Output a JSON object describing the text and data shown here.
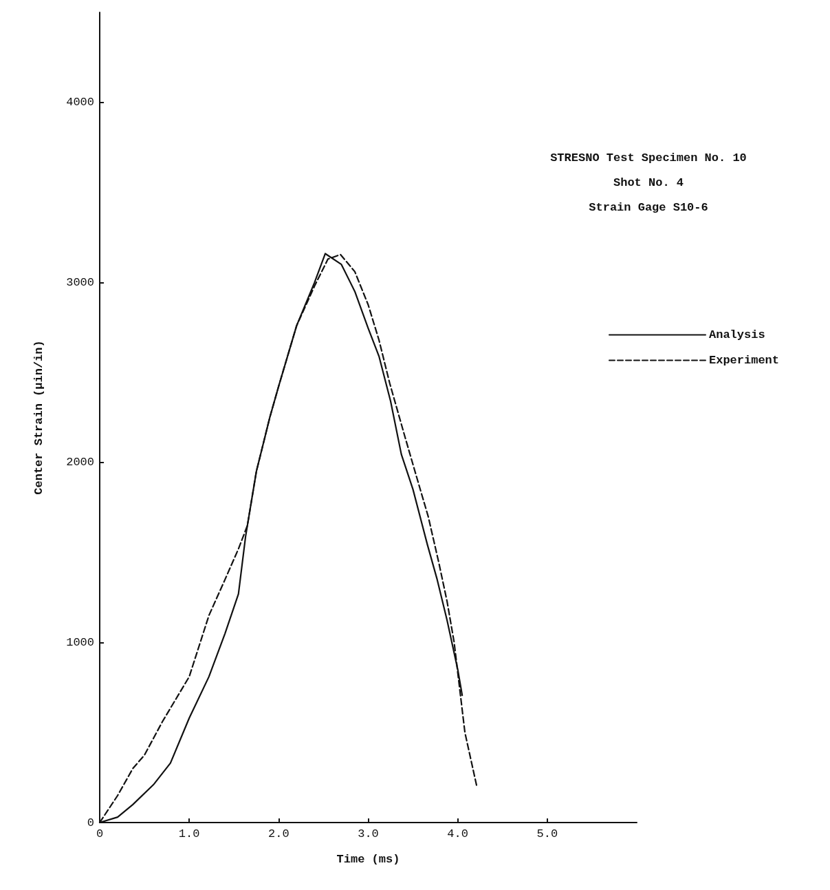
{
  "chart_data": {
    "type": "line",
    "xlabel": "Time (ms)",
    "ylabel": "Center Strain (μin/in)",
    "annotations": [
      "STRESNO Test Specimen No. 10",
      "Shot No. 4",
      "Strain Gage S10-6"
    ],
    "xlim": [
      0,
      6
    ],
    "ylim": [
      0,
      4500
    ],
    "xticks": [
      0,
      {
        "value": 1,
        "label": "1.0"
      },
      {
        "value": 2,
        "label": "2.0"
      },
      {
        "value": 3,
        "label": "3.0"
      },
      {
        "value": 4,
        "label": "4.0"
      },
      {
        "value": 5,
        "label": "5.0"
      }
    ],
    "yticks": [
      0,
      1000,
      2000,
      3000,
      4000
    ],
    "grid": false,
    "legend": "right",
    "marker": "none",
    "series": [
      {
        "name": "Analysis",
        "color": "#111111",
        "line_style": "solid",
        "x": [
          0,
          0.2,
          0.37,
          0.6,
          0.79,
          1.0,
          1.22,
          1.4,
          1.55,
          1.63,
          1.75,
          1.9,
          2.0,
          2.2,
          2.4,
          2.52,
          2.7,
          2.85,
          3.0,
          3.12,
          3.25,
          3.37,
          3.5,
          3.66,
          3.77,
          3.88,
          4.0,
          4.05
        ],
        "values": [
          0,
          30,
          100,
          210,
          330,
          580,
          810,
          1050,
          1270,
          1590,
          1950,
          2250,
          2425,
          2760,
          3000,
          3160,
          3100,
          2950,
          2745,
          2590,
          2340,
          2045,
          1850,
          1545,
          1350,
          1125,
          850,
          707
        ]
      },
      {
        "name": "Experiment",
        "color": "#111111",
        "line_style": "dashed",
        "x": [
          0,
          0.2,
          0.37,
          0.5,
          0.7,
          1.0,
          1.22,
          1.4,
          1.55,
          1.65,
          1.75,
          1.9,
          2.0,
          2.2,
          2.4,
          2.55,
          2.69,
          2.85,
          3.0,
          3.12,
          3.24,
          3.4,
          3.54,
          3.67,
          3.79,
          3.88,
          3.96,
          4.08,
          4.21
        ],
        "values": [
          0,
          150,
          300,
          375,
          560,
          810,
          1150,
          1350,
          1520,
          1650,
          1950,
          2250,
          2425,
          2760,
          2980,
          3130,
          3155,
          3060,
          2875,
          2680,
          2440,
          2160,
          1920,
          1700,
          1440,
          1230,
          1000,
          500,
          207
        ]
      }
    ]
  }
}
